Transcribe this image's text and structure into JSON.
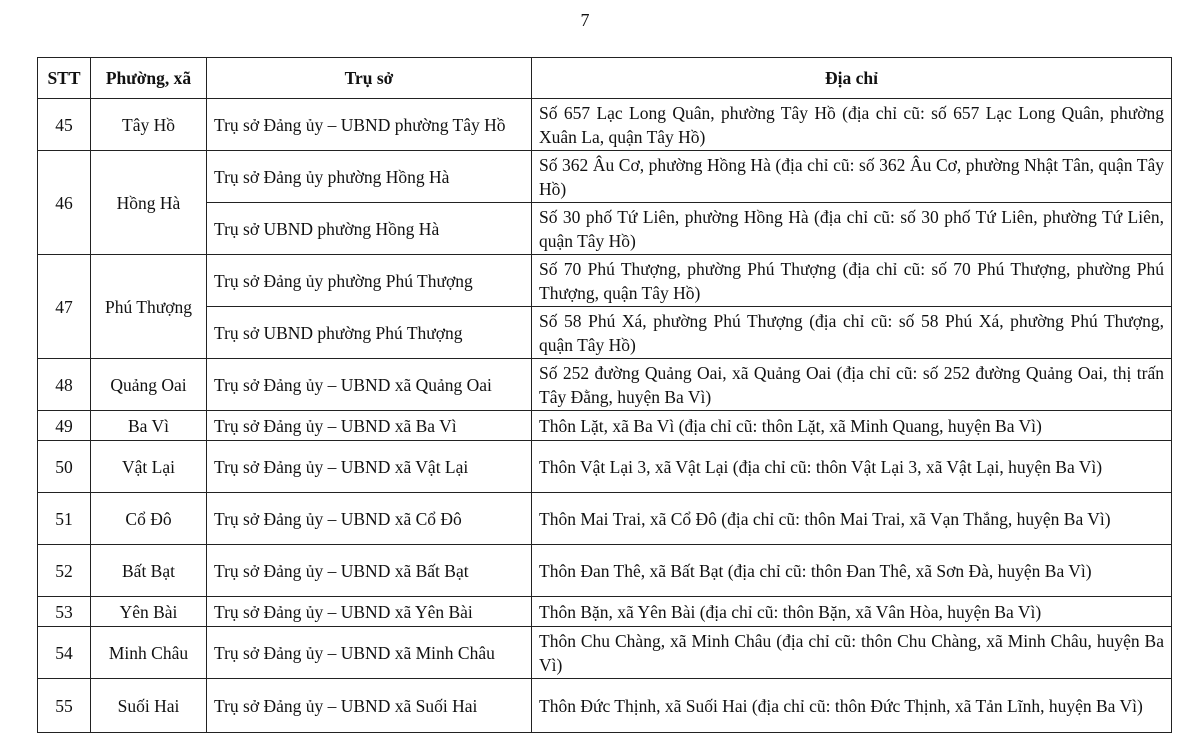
{
  "page_number": "7",
  "headers": {
    "stt": "STT",
    "ward": "Phường, xã",
    "office": "Trụ sở",
    "address": "Địa chỉ"
  },
  "rows": [
    {
      "stt": "45",
      "ward": "Tây Hồ",
      "offices": [
        {
          "office": "Trụ sở Đảng ủy – UBND phường Tây Hồ",
          "address": "Số 657 Lạc Long Quân, phường Tây Hồ (địa chỉ cũ: số 657 Lạc Long Quân, phường Xuân La, quận Tây Hồ)"
        }
      ]
    },
    {
      "stt": "46",
      "ward": "Hồng Hà",
      "offices": [
        {
          "office": "Trụ sở Đảng ủy phường Hồng Hà",
          "address": "Số 362 Âu Cơ, phường Hồng Hà (địa chỉ cũ: số 362 Âu Cơ, phường Nhật Tân, quận Tây Hồ)"
        },
        {
          "office": "Trụ sở UBND phường Hồng Hà",
          "address": "Số 30 phố Tứ Liên, phường Hồng Hà (địa chỉ cũ: số 30 phố Tứ Liên, phường Tứ Liên, quận Tây Hồ)"
        }
      ]
    },
    {
      "stt": "47",
      "ward": "Phú Thượng",
      "offices": [
        {
          "office": "Trụ sở Đảng ủy phường Phú Thượng",
          "address": "Số 70 Phú Thượng, phường Phú Thượng (địa chỉ cũ: số 70 Phú Thượng, phường Phú Thượng, quận Tây Hồ)"
        },
        {
          "office": "Trụ sở UBND phường Phú Thượng",
          "address": "Số 58 Phú Xá, phường Phú Thượng (địa chỉ cũ: số 58 Phú Xá, phường Phú Thượng, quận Tây Hồ)"
        }
      ]
    },
    {
      "stt": "48",
      "ward": "Quảng Oai",
      "offices": [
        {
          "office": "Trụ sở Đảng ủy – UBND xã Quảng Oai",
          "address": "Số 252 đường Quảng Oai, xã Quảng Oai (địa chỉ cũ: số 252 đường Quảng Oai, thị trấn Tây Đằng, huyện Ba Vì)"
        }
      ]
    },
    {
      "stt": "49",
      "ward": "Ba Vì",
      "offices": [
        {
          "office": "Trụ sở Đảng ủy – UBND xã Ba Vì",
          "address": "Thôn Lặt, xã Ba Vì (địa chỉ cũ: thôn Lặt, xã Minh Quang, huyện Ba Vì)"
        }
      ]
    },
    {
      "stt": "50",
      "ward": "Vật Lại",
      "offices": [
        {
          "office": "Trụ sở Đảng ủy – UBND xã Vật Lại",
          "address": "Thôn Vật Lại 3, xã Vật Lại (địa chỉ cũ: thôn Vật Lại 3, xã Vật Lại, huyện Ba Vì)"
        }
      ]
    },
    {
      "stt": "51",
      "ward": "Cổ Đô",
      "offices": [
        {
          "office": "Trụ sở Đảng ủy – UBND xã Cổ Đô",
          "address": "Thôn Mai Trai, xã Cổ Đô (địa chỉ cũ: thôn Mai Trai, xã Vạn Thắng, huyện Ba Vì)"
        }
      ]
    },
    {
      "stt": "52",
      "ward": "Bất Bạt",
      "offices": [
        {
          "office": "Trụ sở Đảng ủy – UBND xã Bất Bạt",
          "address": "Thôn Đan Thê, xã Bất Bạt (địa chỉ cũ: thôn Đan Thê, xã Sơn Đà, huyện Ba Vì)"
        }
      ]
    },
    {
      "stt": "53",
      "ward": "Yên Bài",
      "offices": [
        {
          "office": "Trụ sở Đảng ủy – UBND xã Yên Bài",
          "address": "Thôn Bặn, xã Yên Bài (địa chỉ cũ: thôn Bặn, xã Vân Hòa, huyện Ba Vì)"
        }
      ]
    },
    {
      "stt": "54",
      "ward": "Minh Châu",
      "offices": [
        {
          "office": "Trụ sở Đảng ủy – UBND xã Minh Châu",
          "address": "Thôn Chu Chàng, xã Minh Châu (địa chỉ cũ: thôn Chu Chàng, xã Minh Châu, huyện Ba Vì)"
        }
      ]
    },
    {
      "stt": "55",
      "ward": "Suối Hai",
      "offices": [
        {
          "office": "Trụ sở Đảng ủy – UBND xã Suối Hai",
          "address": "Thôn Đức Thịnh, xã Suối Hai (địa chỉ cũ: thôn Đức Thịnh, xã Tản Lĩnh, huyện Ba Vì)"
        }
      ]
    }
  ]
}
